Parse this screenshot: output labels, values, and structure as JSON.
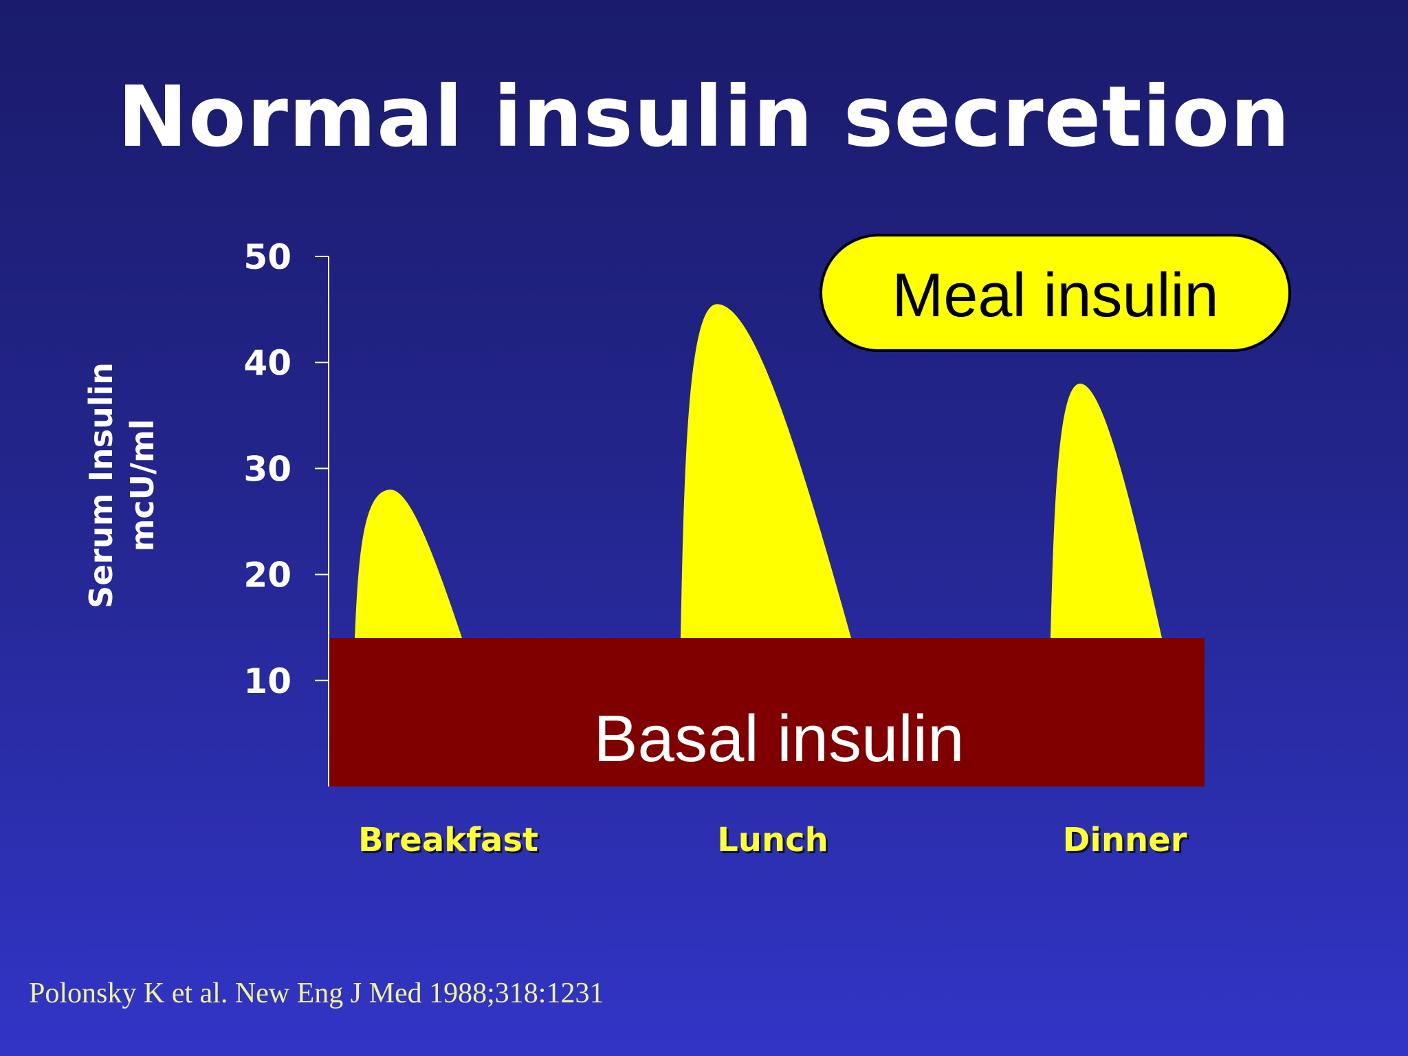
{
  "slide": {
    "title": "Normal insulin secretion",
    "citation": "Polonsky K et al. New Eng J Med 1988;318:1231"
  },
  "colors": {
    "background_top": "#1a1b6b",
    "background_bottom": "#3135c6",
    "meal_insulin": "#ffff00",
    "basal_insulin": "#800000",
    "meal_label_text": "#000000",
    "basal_label_text": "#ffffff",
    "axis": "#ffffff",
    "tick_labels": "#ffffff",
    "meal_time_labels": "#ffff33"
  },
  "chart_data": {
    "type": "area",
    "title": "",
    "ylabel": "Serum Insulin",
    "ylabel_unit": "mcU/ml",
    "xlabel": "",
    "ylim": [
      0,
      50
    ],
    "yticks": [
      10,
      20,
      30,
      40,
      50
    ],
    "grid": false,
    "categories": [
      "Breakfast",
      "Lunch",
      "Dinner"
    ],
    "basal": {
      "name": "Basal insulin",
      "value": 14
    },
    "meal_series": {
      "name": "Meal insulin",
      "peaks": [
        {
          "meal": "Breakfast",
          "peak": 28
        },
        {
          "meal": "Lunch",
          "peak": 45.5
        },
        {
          "meal": "Dinner",
          "peak": 38
        }
      ]
    }
  }
}
